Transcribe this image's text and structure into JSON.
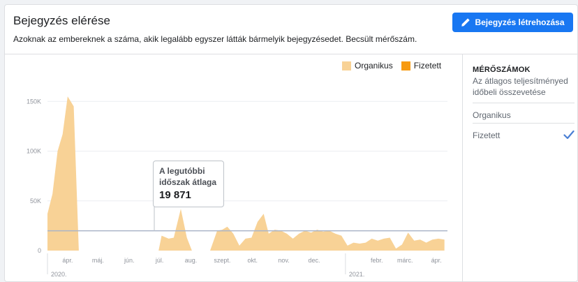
{
  "header": {
    "title": "Bejegyzés elérése",
    "subtitle": "Azoknak az embereknek a száma, akik legalább egyszer látták bármelyik bejegyzésedet. Becsült mérőszám.",
    "create_button": "Bejegyzés létrehozása"
  },
  "tooltip": {
    "label": "A legutóbbi időszak átlaga",
    "value": "19 871"
  },
  "sidebar": {
    "heading": "MÉRŐSZÁMOK",
    "description": "Az átlagos teljesítményed időbeli összevetése",
    "items": [
      {
        "label": "Organikus",
        "selected": false
      },
      {
        "label": "Fizetett",
        "selected": true
      }
    ]
  },
  "colors": {
    "organic": "#f8d296",
    "paid": "#f79a10",
    "average_line": "#aab4c8",
    "accent": "#1877f2"
  },
  "chart_data": {
    "type": "area",
    "series": [
      {
        "name": "Organikus",
        "points": [
          [
            "2020-03-12",
            37000
          ],
          [
            "2020-03-17",
            57000
          ],
          [
            "2020-03-22",
            100000
          ],
          [
            "2020-03-27",
            117000
          ],
          [
            "2020-04-01",
            155000
          ],
          [
            "2020-04-07",
            145000
          ],
          [
            "2020-04-12",
            0
          ],
          [
            "2020-06-30",
            0
          ],
          [
            "2020-07-03",
            15000
          ],
          [
            "2020-07-10",
            12000
          ],
          [
            "2020-07-15",
            13000
          ],
          [
            "2020-07-22",
            42000
          ],
          [
            "2020-07-28",
            13000
          ],
          [
            "2020-08-02",
            0
          ],
          [
            "2020-08-20",
            0
          ],
          [
            "2020-08-27",
            20000
          ],
          [
            "2020-09-01",
            21000
          ],
          [
            "2020-09-06",
            24000
          ],
          [
            "2020-09-12",
            17000
          ],
          [
            "2020-09-18",
            5000
          ],
          [
            "2020-09-24",
            12000
          ],
          [
            "2020-09-30",
            13000
          ],
          [
            "2020-10-06",
            29000
          ],
          [
            "2020-10-12",
            37000
          ],
          [
            "2020-10-17",
            17000
          ],
          [
            "2020-10-23",
            21000
          ],
          [
            "2020-10-29",
            20000
          ],
          [
            "2020-11-04",
            17000
          ],
          [
            "2020-11-10",
            12000
          ],
          [
            "2020-11-16",
            17000
          ],
          [
            "2020-11-22",
            20000
          ],
          [
            "2020-11-28",
            18000
          ],
          [
            "2020-12-04",
            21000
          ],
          [
            "2020-12-10",
            19000
          ],
          [
            "2020-12-16",
            20000
          ],
          [
            "2020-12-22",
            17000
          ],
          [
            "2020-12-28",
            15000
          ],
          [
            "2021-01-03",
            5000
          ],
          [
            "2021-01-09",
            8000
          ],
          [
            "2021-01-15",
            7000
          ],
          [
            "2021-01-21",
            8000
          ],
          [
            "2021-01-27",
            12000
          ],
          [
            "2021-02-02",
            10000
          ],
          [
            "2021-02-08",
            12000
          ],
          [
            "2021-02-14",
            13000
          ],
          [
            "2021-02-20",
            2000
          ],
          [
            "2021-02-26",
            6000
          ],
          [
            "2021-03-04",
            18000
          ],
          [
            "2021-03-10",
            10000
          ],
          [
            "2021-03-16",
            11000
          ],
          [
            "2021-03-22",
            8000
          ],
          [
            "2021-03-28",
            11000
          ],
          [
            "2021-04-03",
            12000
          ],
          [
            "2021-04-09",
            11000
          ]
        ]
      },
      {
        "name": "Fizetett",
        "points": []
      }
    ],
    "average": 19871,
    "ylim": [
      0,
      160000
    ],
    "y_ticks": [
      {
        "value": 0,
        "label": "0"
      },
      {
        "value": 50000,
        "label": "50K"
      },
      {
        "value": 100000,
        "label": "100K"
      },
      {
        "value": 150000,
        "label": "150K"
      }
    ],
    "x_ticks": [
      {
        "date": "2020-04-01",
        "label": "ápr."
      },
      {
        "date": "2020-05-01",
        "label": "máj."
      },
      {
        "date": "2020-06-01",
        "label": "jún."
      },
      {
        "date": "2020-07-01",
        "label": "júl."
      },
      {
        "date": "2020-08-01",
        "label": "aug."
      },
      {
        "date": "2020-09-01",
        "label": "szept."
      },
      {
        "date": "2020-10-01",
        "label": "okt."
      },
      {
        "date": "2020-11-01",
        "label": "nov."
      },
      {
        "date": "2020-12-01",
        "label": "dec."
      },
      {
        "date": "2021-02-01",
        "label": "febr."
      },
      {
        "date": "2021-03-01",
        "label": "márc."
      },
      {
        "date": "2021-04-01",
        "label": "ápr."
      }
    ],
    "year_labels": [
      {
        "date": "2020-03-12",
        "label": "2020."
      },
      {
        "date": "2021-01-01",
        "label": "2021."
      }
    ],
    "xlim": [
      "2020-03-12",
      "2021-04-12"
    ],
    "grid": true,
    "legend_position": "top-right"
  }
}
